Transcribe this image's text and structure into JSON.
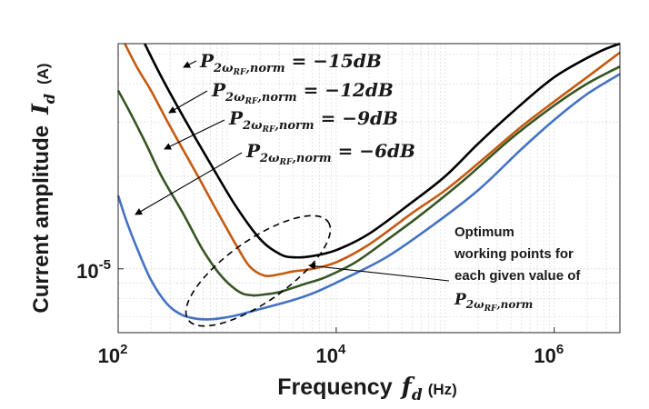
{
  "chart_data": {
    "type": "line",
    "x_scale": "log",
    "y_scale": "log",
    "xlim": [
      100,
      4000000
    ],
    "ylim": [
      6.2e-06,
      5.4e-05
    ],
    "x_ticks": [
      {
        "value": 100,
        "base": "10",
        "exp": "2"
      },
      {
        "value": 10000,
        "base": "10",
        "exp": "4"
      },
      {
        "value": 1000000,
        "base": "10",
        "exp": "6"
      }
    ],
    "y_ticks": [
      {
        "value": 1e-05,
        "base": "10",
        "exp": "-5"
      }
    ],
    "xlabel": {
      "text": "Frequency",
      "symbol": "f",
      "sub": "d",
      "unit": "(Hz)"
    },
    "ylabel": {
      "text": "Current amplitude",
      "symbol": "I",
      "sub": "d",
      "unit": "(A)"
    },
    "grid": true,
    "series": [
      {
        "name": "-15dB",
        "color": "#000000",
        "legend": {
          "sym": "P",
          "sub": "2ω",
          "subsub": "RF",
          "sub2": ",norm",
          "eq": " = −15",
          "unit": "dB"
        },
        "x": [
          175,
          250,
          400,
          700,
          1200,
          2000,
          3000,
          4000,
          6000,
          10000,
          20000,
          50000,
          100000,
          200000,
          400000,
          1000000,
          2500000,
          4000000
        ],
        "y": [
          5.4e-05,
          4.2e-05,
          3.1e-05,
          2.2e-05,
          1.6e-05,
          1.25e-05,
          1.12e-05,
          1.09e-05,
          1.1e-05,
          1.15e-05,
          1.3e-05,
          1.65e-05,
          2e-05,
          2.55e-05,
          3.2e-05,
          4.2e-05,
          5.05e-05,
          5.4e-05
        ]
      },
      {
        "name": "-12dB",
        "color": "#c55a11",
        "legend": {
          "sym": "P",
          "sub": "2ω",
          "subsub": "RF",
          "sub2": ",norm",
          "eq": " = −12",
          "unit": "dB"
        },
        "x": [
          115,
          150,
          200,
          300,
          500,
          800,
          1200,
          1600,
          2200,
          3000,
          4000,
          6000,
          10000,
          20000,
          50000,
          100000,
          200000,
          500000,
          1000000,
          2000000,
          4000000
        ],
        "y": [
          5.4e-05,
          4.5e-05,
          3.8e-05,
          2.9e-05,
          2.1e-05,
          1.55e-05,
          1.2e-05,
          1.02e-05,
          9.5e-06,
          9.6e-06,
          9.8e-06,
          1e-05,
          1.05e-05,
          1.2e-05,
          1.52e-05,
          1.8e-05,
          2.2e-05,
          2.9e-05,
          3.5e-05,
          4.2e-05,
          5.05e-05
        ]
      },
      {
        "name": "-9dB",
        "color": "#375623",
        "legend": {
          "sym": "P",
          "sub": "2ω",
          "subsub": "RF",
          "sub2": ",norm",
          "eq": " = −9",
          "unit": "dB"
        },
        "x": [
          100,
          130,
          180,
          250,
          400,
          600,
          900,
          1300,
          1700,
          2200,
          3000,
          5000,
          8000,
          15000,
          30000,
          60000,
          150000,
          400000,
          1000000,
          2000000,
          4000000
        ],
        "y": [
          3.8e-05,
          3.2e-05,
          2.55e-05,
          2e-05,
          1.5e-05,
          1.15e-05,
          9.4e-06,
          8.4e-06,
          8.2e-06,
          8.25e-06,
          8.4e-06,
          8.9e-06,
          9.4e-06,
          1.05e-05,
          1.25e-05,
          1.5e-05,
          1.95e-05,
          2.65e-05,
          3.4e-05,
          4e-05,
          4.55e-05
        ]
      },
      {
        "name": "-6dB",
        "color": "#4472c4",
        "legend": {
          "sym": "P",
          "sub": "2ω",
          "subsub": "RF",
          "sub2": ",norm",
          "eq": " = −6",
          "unit": "dB"
        },
        "x": [
          100,
          120,
          150,
          200,
          280,
          380,
          500,
          650,
          850,
          1200,
          2000,
          3500,
          6000,
          12000,
          30000,
          80000,
          200000,
          500000,
          1000000,
          2000000,
          4000000
        ],
        "y": [
          1.73e-05,
          1.42e-05,
          1.16e-05,
          9.2e-06,
          7.7e-06,
          7.1e-06,
          6.9e-06,
          6.85e-06,
          6.9e-06,
          7.05e-06,
          7.4e-06,
          7.8e-06,
          8.3e-06,
          9.3e-06,
          1.1e-05,
          1.4e-05,
          1.8e-05,
          2.45e-05,
          3.05e-05,
          3.7e-05,
          4.3e-05
        ]
      }
    ],
    "annotation": {
      "lines": [
        "Optimum",
        "working points for",
        "each given value of"
      ],
      "sym": "P",
      "sub": "2ω",
      "subsub": "RF",
      "sub2": ",norm"
    }
  }
}
